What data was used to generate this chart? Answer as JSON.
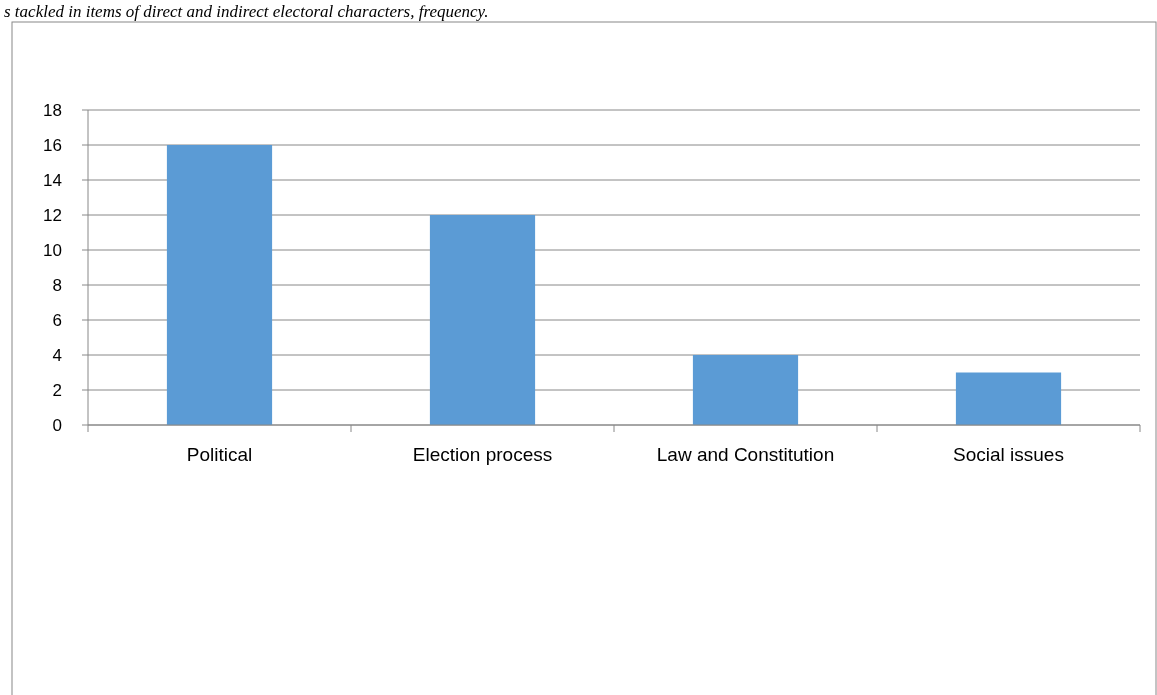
{
  "chart_data": {
    "type": "bar",
    "title": "s tackled in items of direct and indirect electoral characters, frequency.",
    "categories": [
      "Political",
      "Election process",
      "Law and Constitution",
      "Social issues"
    ],
    "values": [
      16,
      12,
      4,
      3
    ],
    "color": "#5b9bd5",
    "ylim": [
      0,
      18
    ],
    "yticks": [
      0,
      2,
      4,
      6,
      8,
      10,
      12,
      14,
      16,
      18
    ],
    "grid": "y"
  }
}
